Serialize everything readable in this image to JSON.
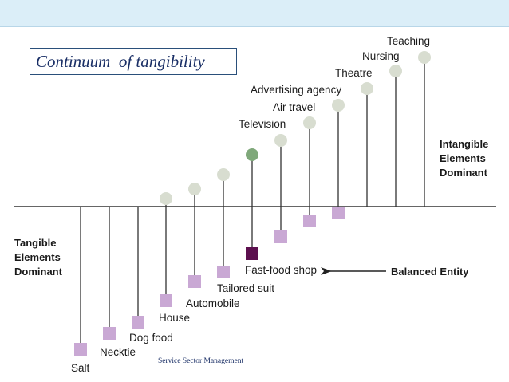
{
  "slide": {
    "title": "Continuum  of tangibility",
    "footer": "Service Sector Management"
  },
  "diagram": {
    "left_pole": [
      "Tangible",
      "Elements",
      "Dominant"
    ],
    "right_pole": [
      "Intangible",
      "Elements",
      "Dominant"
    ],
    "balanced_label": "Balanced Entity",
    "items": [
      {
        "name": "Salt",
        "side": "tangible"
      },
      {
        "name": "Necktie",
        "side": "tangible"
      },
      {
        "name": "Dog food",
        "side": "tangible"
      },
      {
        "name": "House",
        "side": "tangible"
      },
      {
        "name": "Automobile",
        "side": "tangible"
      },
      {
        "name": "Tailored suit",
        "side": "tangible"
      },
      {
        "name": "Fast-food shop",
        "side": "balanced"
      },
      {
        "name": "Television",
        "side": "intangible"
      },
      {
        "name": "Air travel",
        "side": "intangible"
      },
      {
        "name": "Advertising agency",
        "side": "intangible"
      },
      {
        "name": "Theatre",
        "side": "intangible"
      },
      {
        "name": "Nursing",
        "side": "intangible"
      },
      {
        "name": "Teaching",
        "side": "intangible"
      }
    ],
    "colors": {
      "tangible_square": "#c9a8d4",
      "intangible_circle": "#d8ddd0",
      "balanced_square": "#5c0f4e",
      "balanced_circle": "#7fa87a",
      "line": "#333333"
    }
  }
}
